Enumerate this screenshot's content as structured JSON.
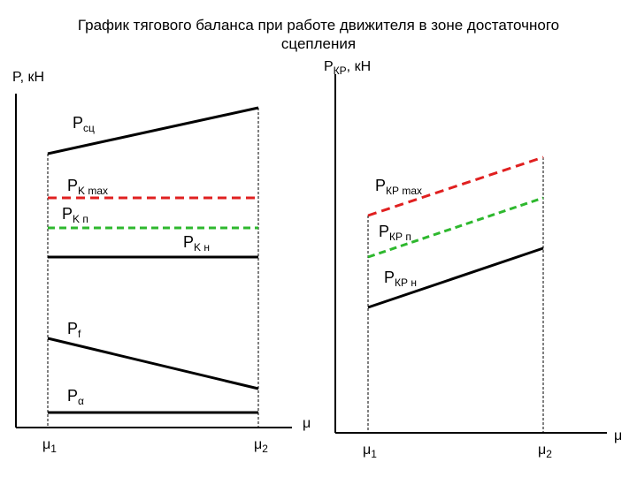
{
  "title": {
    "line1": "График тягового баланса при работе движителя в зоне достаточного",
    "line2": "сцепления"
  },
  "left_panel": {
    "y_axis_label": "P, кН",
    "x_axis_label": "μ",
    "x_ticks": [
      {
        "main": "μ",
        "sub": "1"
      },
      {
        "main": "μ",
        "sub": "2"
      }
    ],
    "lines": [
      {
        "main": "P",
        "sub": "сц",
        "color": "#000000",
        "style": "solid"
      },
      {
        "main": "P",
        "sub": "K max",
        "color": "#e02020",
        "style": "dashed"
      },
      {
        "main": "P",
        "sub": "K п",
        "color": "#2eb82e",
        "style": "dashed"
      },
      {
        "main": "P",
        "sub": "K н",
        "color": "#000000",
        "style": "solid"
      },
      {
        "main": "P",
        "sub": "f",
        "color": "#000000",
        "style": "solid"
      },
      {
        "main": "P",
        "sub": "α",
        "color": "#000000",
        "style": "solid"
      }
    ]
  },
  "right_panel": {
    "y_axis_label": {
      "main": "P",
      "sub": "КР",
      "unit": ", кН"
    },
    "x_axis_label": "μ",
    "x_ticks": [
      {
        "main": "μ",
        "sub": "1"
      },
      {
        "main": "μ",
        "sub": "2"
      }
    ],
    "lines": [
      {
        "main": "P",
        "sub": "КР max",
        "color": "#e02020",
        "style": "dashed"
      },
      {
        "main": "P",
        "sub": "КР п",
        "color": "#2eb82e",
        "style": "dashed"
      },
      {
        "main": "P",
        "sub": "КР н",
        "color": "#000000",
        "style": "solid"
      }
    ]
  }
}
